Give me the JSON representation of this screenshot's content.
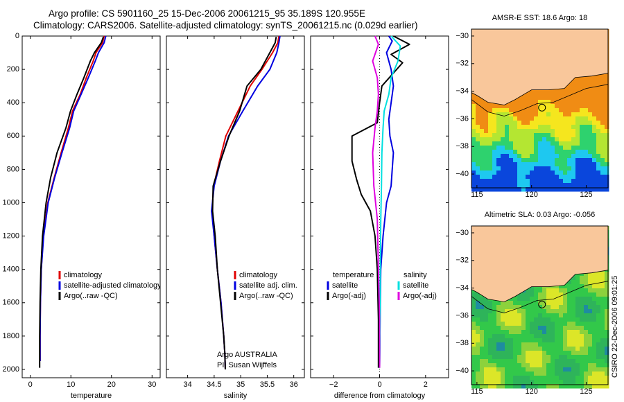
{
  "header": {
    "line1": "Argo profile: CS 5901160_25 15-Dec-2006 20061215_95 35.189S 120.955E",
    "line2": "Climatology: CARS2006. Satellite-adjusted climatology: synTS_20061215.nc (0.029d earlier)"
  },
  "side_label": "CSIRO 22-Dec-2006 09:01:25",
  "colors": {
    "climatology": "#e00000",
    "satellite": "#0000e0",
    "argo": "#000000",
    "sal_satellite": "#00e0e0",
    "sal_argo": "#e000e0",
    "land": "#f9c79b"
  },
  "chart_data": [
    {
      "id": "temperature",
      "type": "line",
      "xlabel": "temperature",
      "ylabel": "",
      "xlim": [
        -2,
        32
      ],
      "ylim": [
        0,
        2050
      ],
      "y_inverted": true,
      "xticks": [
        0,
        10,
        20,
        30
      ],
      "yticks": [
        0,
        200,
        400,
        600,
        800,
        1000,
        1200,
        1400,
        1600,
        1800,
        2000
      ],
      "legend": [
        "climatology",
        "satellite-adjusted climatology",
        "Argo(..raw -QC)"
      ],
      "legend_position": "lower-right",
      "series": [
        {
          "name": "climatology",
          "color": "#e00000",
          "x": [
            18.2,
            17.8,
            16.2,
            15.5,
            13.8,
            12.3,
            10.4,
            9.4,
            7.6,
            5.9,
            4.3,
            3.2,
            2.7,
            2.5,
            2.4,
            2.4
          ],
          "y": [
            0,
            40,
            100,
            150,
            250,
            350,
            450,
            550,
            700,
            850,
            1000,
            1200,
            1400,
            1600,
            1800,
            1950
          ]
        },
        {
          "name": "satellite-adjusted climatology",
          "color": "#0000e0",
          "x": [
            18.6,
            18.2,
            16.8,
            16.0,
            14.3,
            12.5,
            10.7,
            9.7,
            7.8,
            6.0,
            4.4,
            3.3,
            2.7,
            2.5,
            2.4,
            2.4
          ],
          "y": [
            0,
            40,
            100,
            150,
            250,
            350,
            450,
            550,
            700,
            850,
            1000,
            1200,
            1400,
            1600,
            1800,
            1950
          ]
        },
        {
          "name": "Argo(..raw -QC)",
          "color": "#000000",
          "x": [
            18.0,
            17.5,
            15.8,
            14.8,
            13.2,
            11.5,
            9.9,
            8.8,
            6.6,
            5.0,
            3.9,
            3.0,
            2.6,
            2.4,
            2.3,
            2.3
          ],
          "y": [
            5,
            40,
            100,
            150,
            250,
            350,
            450,
            550,
            700,
            850,
            1000,
            1200,
            1400,
            1600,
            1800,
            1990
          ]
        }
      ]
    },
    {
      "id": "salinity",
      "type": "line",
      "xlabel": "salinity",
      "ylabel": "",
      "xlim": [
        33.6,
        36.2
      ],
      "ylim": [
        0,
        2050
      ],
      "y_inverted": true,
      "xticks": [
        34,
        34.5,
        35,
        35.5,
        36
      ],
      "legend": [
        "climatology",
        "satellite adj. clim.",
        "Argo(..raw -QC)"
      ],
      "legend_position": "lower-right",
      "annotation": [
        "Argo AUSTRALIA",
        "PI: Susan Wijffels"
      ],
      "series": [
        {
          "name": "climatology",
          "color": "#e00000",
          "x": [
            35.72,
            35.7,
            35.6,
            35.4,
            35.18,
            34.95,
            34.72,
            34.6,
            34.49,
            34.46,
            34.5,
            34.56,
            34.63,
            34.68,
            34.7,
            34.71
          ],
          "y": [
            0,
            40,
            100,
            200,
            300,
            450,
            600,
            750,
            900,
            1050,
            1200,
            1400,
            1600,
            1800,
            1900,
            2000
          ]
        },
        {
          "name": "satellite adj. clim.",
          "color": "#0000e0",
          "x": [
            35.74,
            35.72,
            35.68,
            35.55,
            35.32,
            35.04,
            34.77,
            34.62,
            34.5,
            34.45,
            34.5,
            34.56,
            34.63,
            34.68,
            34.7,
            34.71
          ],
          "y": [
            0,
            40,
            100,
            200,
            300,
            450,
            600,
            750,
            900,
            1050,
            1200,
            1400,
            1600,
            1800,
            1900,
            2000
          ]
        },
        {
          "name": "Argo(..raw -QC)",
          "color": "#000000",
          "x": [
            35.67,
            35.65,
            35.55,
            35.38,
            35.12,
            34.98,
            34.78,
            34.62,
            34.48,
            34.47,
            34.52,
            34.56,
            34.62,
            34.68,
            34.7,
            34.71
          ],
          "y": [
            5,
            40,
            100,
            200,
            300,
            450,
            600,
            750,
            900,
            1050,
            1200,
            1400,
            1600,
            1800,
            1900,
            2000
          ]
        }
      ]
    },
    {
      "id": "difference",
      "type": "line",
      "xlabel": "difference from climatology",
      "ylabel": "",
      "xlim": [
        -3.0,
        3.0
      ],
      "ylim": [
        0,
        2050
      ],
      "y_inverted": true,
      "xticks": [
        -2,
        0,
        2
      ],
      "legend": [
        "temperature",
        "satellite",
        "Argo(-adj)",
        "salinity",
        "satellite",
        "Argo(-adj)"
      ],
      "legend_position": "lower",
      "series": [
        {
          "name": "temperature satellite",
          "color": "#0000e0",
          "x": [
            0.4,
            0.55,
            0.3,
            0.5,
            0.6,
            0.5,
            0.4,
            0.45,
            0.6,
            0.55,
            0.5,
            0.3,
            0.15,
            0.05,
            0.02,
            0.0
          ],
          "y": [
            0,
            30,
            100,
            200,
            300,
            400,
            500,
            600,
            700,
            800,
            900,
            1000,
            1200,
            1400,
            1700,
            1990
          ]
        },
        {
          "name": "temperature Argo(-adj)",
          "color": "#000000",
          "x": [
            0.6,
            1.3,
            0.5,
            1.0,
            0.1,
            0.0,
            -0.1,
            -1.2,
            -1.2,
            -1.0,
            -0.8,
            -0.4,
            -0.2,
            -0.1,
            -0.05,
            -0.05
          ],
          "y": [
            0,
            50,
            110,
            160,
            300,
            400,
            520,
            600,
            750,
            860,
            950,
            1050,
            1200,
            1400,
            1700,
            1990
          ]
        },
        {
          "name": "salinity satellite",
          "color": "#00e0e0",
          "x": [
            0.5,
            0.9,
            0.8,
            0.5,
            0.4,
            0.2,
            0.15,
            0.1,
            0.08,
            0.05,
            0.03,
            0.02,
            0.0
          ],
          "y": [
            0,
            60,
            150,
            250,
            350,
            450,
            550,
            700,
            900,
            1100,
            1400,
            1700,
            1990
          ]
        },
        {
          "name": "salinity Argo(-adj)",
          "color": "#e000e0",
          "x": [
            -0.2,
            -0.05,
            -0.3,
            -0.1,
            -0.05,
            -0.1,
            -0.2,
            -0.3,
            -0.25,
            -0.1,
            -0.05,
            0.0,
            0.0
          ],
          "y": [
            0,
            50,
            150,
            250,
            350,
            450,
            550,
            700,
            900,
            1100,
            1400,
            1700,
            1990
          ]
        }
      ]
    },
    {
      "id": "sst-map",
      "type": "heatmap",
      "title": "AMSR-E SST: 18.6 Argo: 18",
      "xlim": [
        114.5,
        127
      ],
      "ylim": [
        -41,
        -29.5
      ],
      "xticks": [
        115,
        120,
        125
      ],
      "yticks": [
        -30,
        -32,
        -34,
        -36,
        -38,
        -40
      ],
      "marker": {
        "lon": 120.955,
        "lat": -35.189
      }
    },
    {
      "id": "sla-map",
      "type": "heatmap",
      "title": "Altimetric SLA: 0.03 Argo: -0.056",
      "xlim": [
        114.5,
        127
      ],
      "ylim": [
        -41,
        -29.5
      ],
      "xticks": [
        115,
        120,
        125
      ],
      "yticks": [
        -30,
        -32,
        -34,
        -36,
        -38,
        -40
      ],
      "marker": {
        "lon": 120.955,
        "lat": -35.189
      }
    }
  ]
}
